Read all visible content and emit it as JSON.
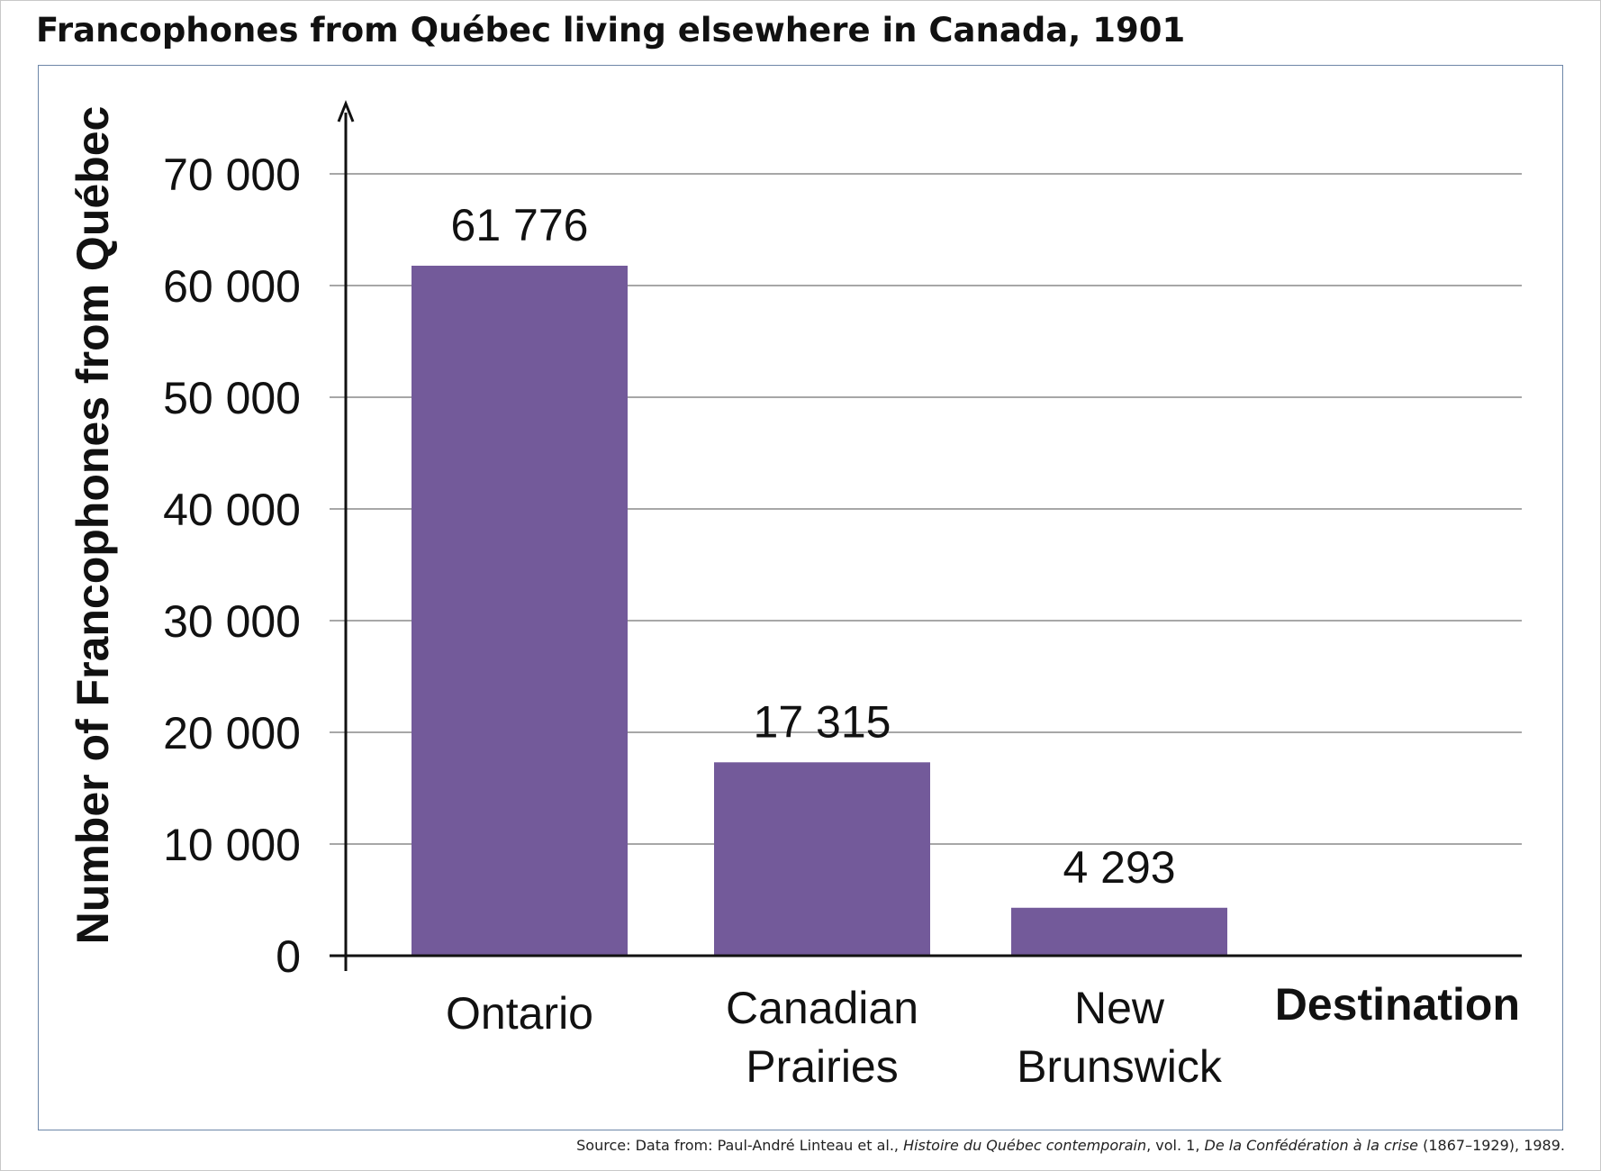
{
  "title": "Francophones from Québec living elsewhere in Canada, 1901",
  "source": {
    "prefix": "Source: Data from: Paul-André Linteau et al., ",
    "work": "Histoire du Québec contemporain",
    "middle": ", vol. 1, ",
    "subtitle": "De la Confédération à la crise",
    "suffix": " (1867–1929), 1989."
  },
  "colors": {
    "bar": "#735a9a",
    "grid": "#8a8a8a",
    "axis": "#111111",
    "frame": "#6d86a8"
  },
  "chart_data": {
    "type": "bar",
    "title": "Francophones from Québec living elsewhere in Canada, 1901",
    "xlabel": "Destination",
    "ylabel": "Number of Francophones from Québec",
    "categories": [
      "Ontario",
      "Canadian Prairies",
      "New Brunswick"
    ],
    "category_lines": [
      [
        "Ontario"
      ],
      [
        "Canadian",
        "Prairies"
      ],
      [
        "New",
        "Brunswick"
      ]
    ],
    "values": [
      61776,
      17315,
      4293
    ],
    "value_labels": [
      "61 776",
      "17 315",
      "4 293"
    ],
    "ylim": [
      0,
      70000
    ],
    "yticks": [
      0,
      10000,
      20000,
      30000,
      40000,
      50000,
      60000,
      70000
    ],
    "ytick_labels": [
      "0",
      "10 000",
      "20 000",
      "30 000",
      "40 000",
      "50 000",
      "60 000",
      "70 000"
    ],
    "grid": true,
    "legend": "none"
  }
}
